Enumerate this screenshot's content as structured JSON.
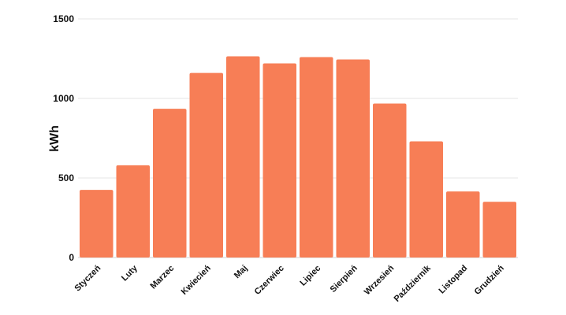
{
  "chart_data": {
    "type": "bar",
    "title": "",
    "xlabel": "",
    "ylabel": "kWh",
    "ylim": [
      0,
      1500
    ],
    "yticks": [
      0,
      500,
      1000,
      1500
    ],
    "grid": true,
    "legend": "none",
    "bar_color": "#F77E56",
    "categories": [
      "Styczeń",
      "Luty",
      "Marzec",
      "Kwiecień",
      "Maj",
      "Czerwiec",
      "Lipiec",
      "Sierpień",
      "Wrzesień",
      "Październik",
      "Listopad",
      "Grudzień"
    ],
    "values": [
      425,
      580,
      935,
      1160,
      1265,
      1220,
      1260,
      1245,
      968,
      730,
      415,
      350
    ]
  }
}
